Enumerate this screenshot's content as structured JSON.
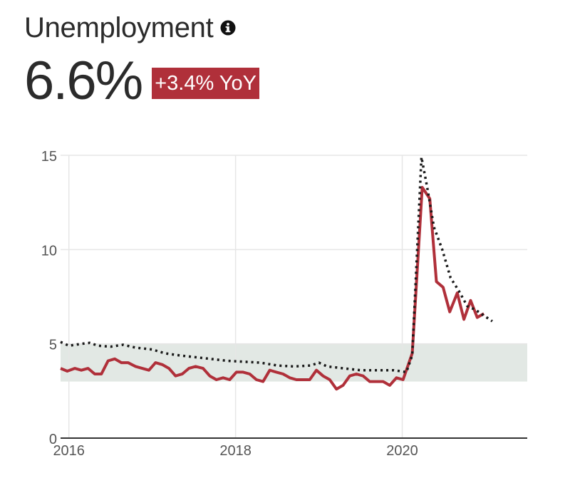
{
  "header": {
    "title": "Unemployment",
    "info_icon": "info-icon",
    "value": "6.6%",
    "yoy": "+3.4% YoY",
    "yoy_color": "#b0303a"
  },
  "chart_data": {
    "type": "line",
    "x_tick_labels": [
      "2016",
      "2018",
      "2020"
    ],
    "y_tick_labels": [
      "0",
      "5",
      "10",
      "15"
    ],
    "xlim": [
      2015.9,
      2021.5
    ],
    "ylim": [
      0,
      15
    ],
    "shaded_band": {
      "from": 3,
      "to": 5,
      "color": "#e2e8e4"
    },
    "grid": true,
    "series": [
      {
        "style": "solid",
        "color": "#b0303a",
        "points": [
          [
            2015.9,
            3.7
          ],
          [
            2015.98,
            3.55
          ],
          [
            2016.07,
            3.7
          ],
          [
            2016.15,
            3.6
          ],
          [
            2016.23,
            3.7
          ],
          [
            2016.31,
            3.4
          ],
          [
            2016.39,
            3.4
          ],
          [
            2016.47,
            4.1
          ],
          [
            2016.55,
            4.2
          ],
          [
            2016.63,
            4.0
          ],
          [
            2016.71,
            4.0
          ],
          [
            2016.8,
            3.8
          ],
          [
            2016.88,
            3.7
          ],
          [
            2016.96,
            3.6
          ],
          [
            2017.04,
            4.0
          ],
          [
            2017.12,
            3.9
          ],
          [
            2017.2,
            3.7
          ],
          [
            2017.28,
            3.3
          ],
          [
            2017.36,
            3.4
          ],
          [
            2017.44,
            3.7
          ],
          [
            2017.52,
            3.8
          ],
          [
            2017.61,
            3.7
          ],
          [
            2017.69,
            3.3
          ],
          [
            2017.77,
            3.1
          ],
          [
            2017.85,
            3.2
          ],
          [
            2017.93,
            3.1
          ],
          [
            2018.01,
            3.5
          ],
          [
            2018.09,
            3.5
          ],
          [
            2018.17,
            3.4
          ],
          [
            2018.25,
            3.1
          ],
          [
            2018.33,
            3.0
          ],
          [
            2018.41,
            3.6
          ],
          [
            2018.49,
            3.5
          ],
          [
            2018.57,
            3.4
          ],
          [
            2018.65,
            3.2
          ],
          [
            2018.73,
            3.1
          ],
          [
            2018.81,
            3.1
          ],
          [
            2018.89,
            3.1
          ],
          [
            2018.97,
            3.6
          ],
          [
            2019.05,
            3.3
          ],
          [
            2019.13,
            3.1
          ],
          [
            2019.21,
            2.6
          ],
          [
            2019.29,
            2.8
          ],
          [
            2019.37,
            3.3
          ],
          [
            2019.45,
            3.4
          ],
          [
            2019.53,
            3.3
          ],
          [
            2019.61,
            3.0
          ],
          [
            2019.69,
            3.0
          ],
          [
            2019.77,
            3.0
          ],
          [
            2019.85,
            2.8
          ],
          [
            2019.93,
            3.2
          ],
          [
            2020.01,
            3.1
          ],
          [
            2020.12,
            4.5
          ],
          [
            2020.24,
            13.3
          ],
          [
            2020.33,
            12.7
          ],
          [
            2020.41,
            8.3
          ],
          [
            2020.49,
            8.0
          ],
          [
            2020.57,
            6.7
          ],
          [
            2020.66,
            7.7
          ],
          [
            2020.74,
            6.3
          ],
          [
            2020.82,
            7.3
          ],
          [
            2020.9,
            6.4
          ],
          [
            2020.98,
            6.6
          ]
        ]
      },
      {
        "style": "dotted",
        "color": "#1a1a1a",
        "points": [
          [
            2015.9,
            5.1
          ],
          [
            2016.0,
            4.9
          ],
          [
            2016.15,
            5.0
          ],
          [
            2016.25,
            5.05
          ],
          [
            2016.35,
            4.9
          ],
          [
            2016.5,
            4.85
          ],
          [
            2016.65,
            4.95
          ],
          [
            2016.8,
            4.8
          ],
          [
            2017.0,
            4.7
          ],
          [
            2017.15,
            4.5
          ],
          [
            2017.3,
            4.4
          ],
          [
            2017.5,
            4.3
          ],
          [
            2017.7,
            4.2
          ],
          [
            2017.9,
            4.1
          ],
          [
            2018.1,
            4.05
          ],
          [
            2018.3,
            4.0
          ],
          [
            2018.5,
            3.85
          ],
          [
            2018.7,
            3.8
          ],
          [
            2018.9,
            3.85
          ],
          [
            2019.0,
            4.0
          ],
          [
            2019.1,
            3.8
          ],
          [
            2019.3,
            3.7
          ],
          [
            2019.5,
            3.6
          ],
          [
            2019.7,
            3.6
          ],
          [
            2019.9,
            3.6
          ],
          [
            2020.05,
            3.5
          ],
          [
            2020.12,
            4.4
          ],
          [
            2020.23,
            14.9
          ],
          [
            2020.3,
            13.3
          ],
          [
            2020.38,
            11.2
          ],
          [
            2020.48,
            10.0
          ],
          [
            2020.58,
            8.5
          ],
          [
            2020.68,
            7.8
          ],
          [
            2020.78,
            7.0
          ],
          [
            2020.88,
            6.8
          ],
          [
            2020.98,
            6.5
          ],
          [
            2021.08,
            6.2
          ]
        ]
      }
    ]
  }
}
